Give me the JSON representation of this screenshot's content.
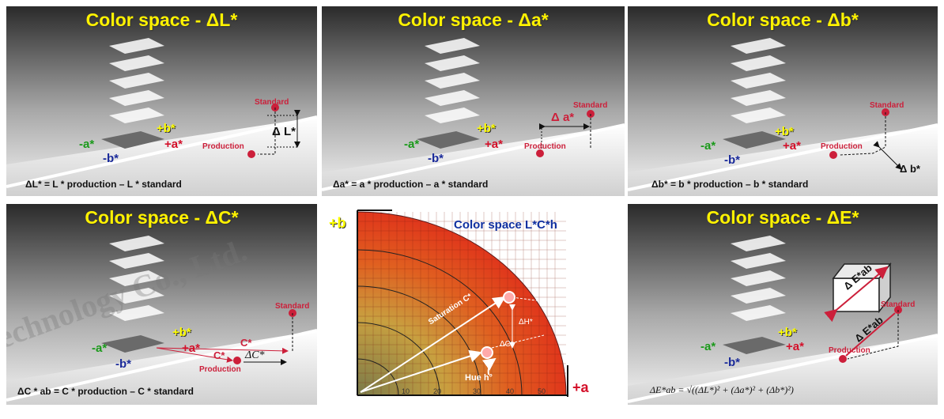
{
  "panels": {
    "dL": {
      "title": "Color space - ΔL*",
      "standard": "Standard",
      "production": "Production",
      "delta": "Δ L*",
      "formula": "ΔL* = L * production – L * standard"
    },
    "da": {
      "title": "Color space - Δa*",
      "standard": "Standard",
      "production": "Production",
      "delta": "Δ a*",
      "formula": "Δa* = a * production – a * standard"
    },
    "db": {
      "title": "Color space - Δb*",
      "standard": "Standard",
      "production": "Production",
      "delta": "Δ b*",
      "formula": "Δb* = b * production – b * standard"
    },
    "dC": {
      "title": "Color space - ΔC*",
      "standard": "Standard",
      "production": "Production",
      "c_std": "C*",
      "c_prod": "C*",
      "delta": "ΔC*",
      "formula": "ΔC * ab = C * production – C * standard"
    },
    "lch": {
      "title": "Color space L*C*h",
      "axis_b": "+b",
      "axis_a": "+a",
      "saturation": "Saturation C*",
      "hue": "Hue  h°",
      "dh": "ΔH*",
      "dc": "ΔC*",
      "ticks": [
        "10",
        "20",
        "30",
        "40",
        "50"
      ]
    },
    "dE": {
      "title": "Color space - ΔE*",
      "standard": "Standard",
      "production": "Production",
      "delta": "Δ E*ab",
      "cube": "Δ E*ab",
      "formula": "ΔE*ab = √((ΔL*)² + (Δa*)² + (Δb*)²)"
    }
  },
  "axes": {
    "pb": "+b*",
    "pa": "+a*",
    "ma": "-a*",
    "mb": "-b*"
  },
  "watermark": "echnology Co., Ltd."
}
